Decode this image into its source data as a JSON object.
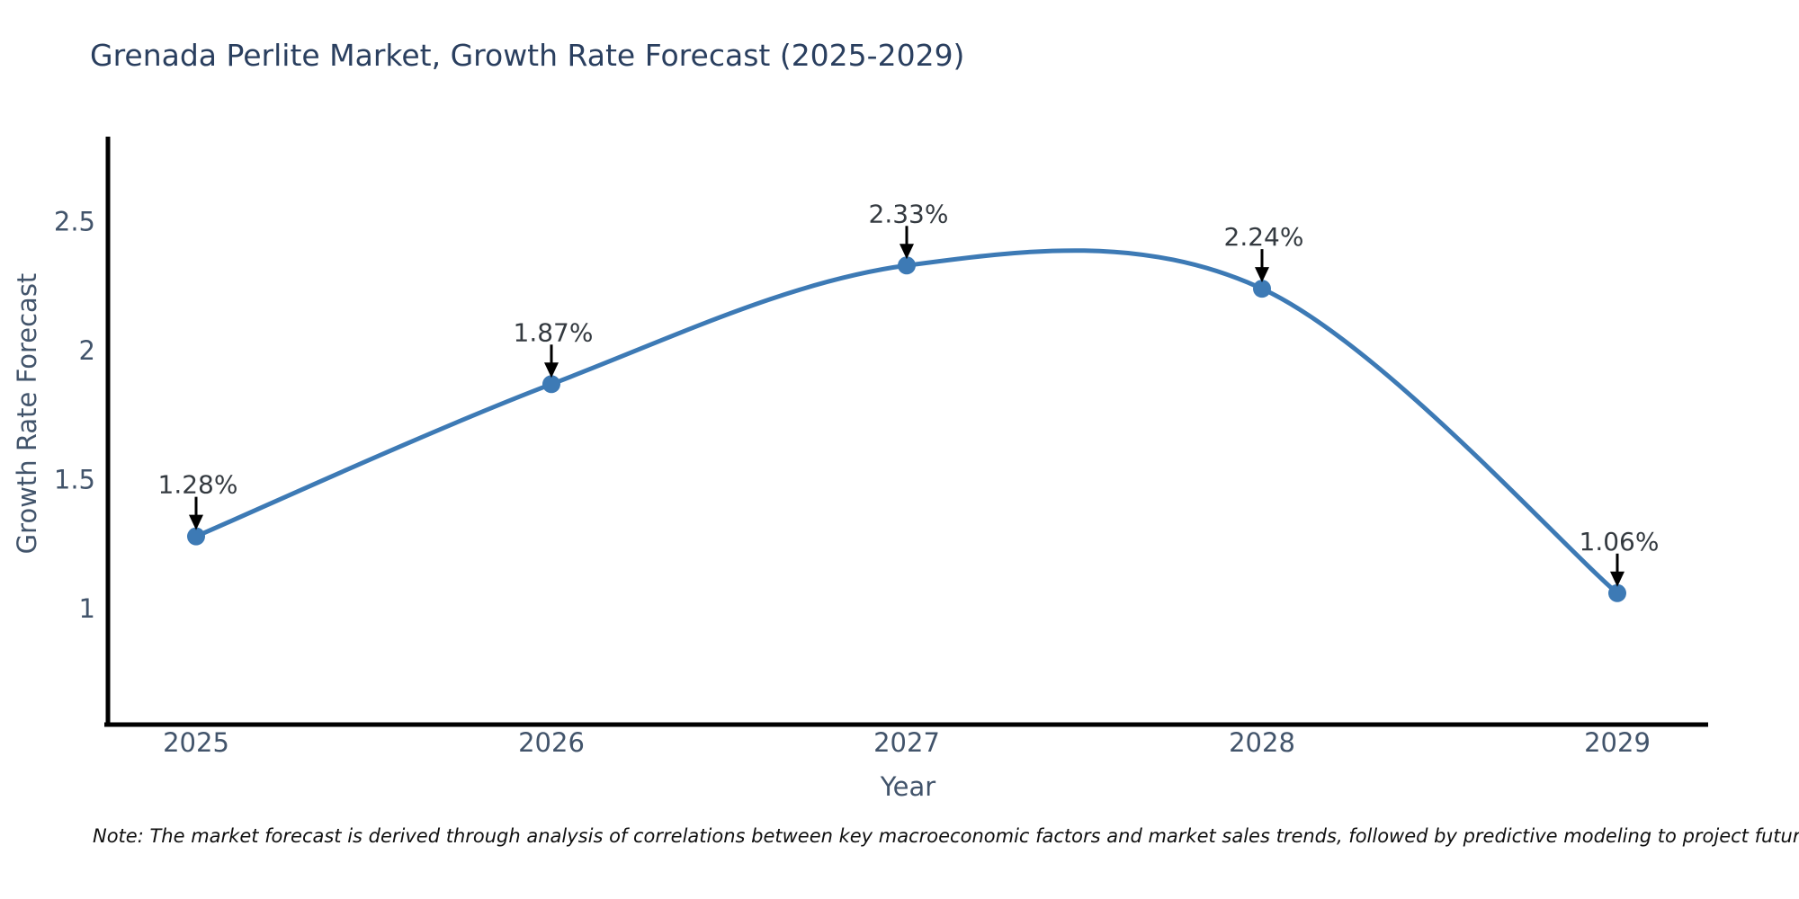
{
  "title": "Grenada Perlite Market, Growth Rate Forecast (2025-2029)",
  "note": "Note: The market forecast is derived through analysis of correlations between key macroeconomic factors and market sales trends, followed by predictive modeling to project future sales",
  "colors": {
    "line": "#3d7ab5",
    "marker": "#3d7ab5",
    "title_text": "#2a3f5f",
    "tick_text": "#42546b",
    "axis_title_text": "#42546b",
    "annotation_text": "#343a40",
    "arrow": "#000000",
    "axis_line": "#000000",
    "note_text": "#101010",
    "background": "#ffffff"
  },
  "chart_data": {
    "type": "line",
    "title": "Grenada Perlite Market, Growth Rate Forecast (2025-2029)",
    "xlabel": "Year",
    "ylabel": "Growth Rate Forecast",
    "x": [
      2025,
      2026,
      2027,
      2028,
      2029
    ],
    "values": [
      1.28,
      1.87,
      2.33,
      2.24,
      1.06
    ],
    "labels": [
      "1.28%",
      "1.87%",
      "2.33%",
      "2.24%",
      "1.06%"
    ],
    "x_tick_labels": [
      "2025",
      "2026",
      "2027",
      "2028",
      "2029"
    ],
    "y_ticks": [
      1,
      1.5,
      2,
      2.5
    ],
    "y_tick_labels": [
      "1",
      "1.5",
      "2",
      "2.5"
    ],
    "xlim": [
      2024.75,
      2029.25
    ],
    "ylim": [
      0.55,
      2.83
    ],
    "line_shape": "spline",
    "grid": false,
    "legend_position": "none",
    "marker": "circle",
    "annotations_arrow": "down"
  }
}
